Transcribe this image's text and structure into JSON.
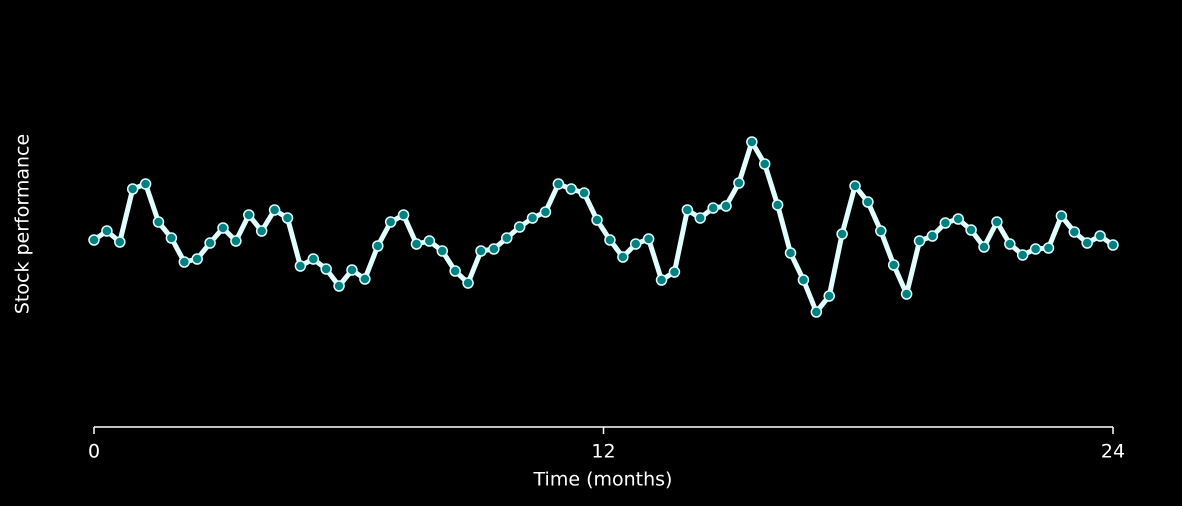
{
  "chart_data": {
    "type": "line",
    "x_label": "Time (months)",
    "y_label": "Stock performance",
    "xlim": [
      0,
      24
    ],
    "xticks": [
      0,
      12,
      24
    ],
    "ylim": [
      -4.7,
      4.3
    ],
    "color": "#e0ffff",
    "marker_color": "#008080",
    "x": [
      0,
      0.304,
      0.608,
      0.911,
      1.215,
      1.519,
      1.823,
      2.127,
      2.43,
      2.734,
      3.038,
      3.342,
      3.646,
      3.949,
      4.253,
      4.557,
      4.861,
      5.165,
      5.468,
      5.772,
      6.076,
      6.38,
      6.684,
      6.987,
      7.291,
      7.595,
      7.899,
      8.203,
      8.506,
      8.81,
      9.114,
      9.418,
      9.722,
      10.025,
      10.329,
      10.633,
      10.937,
      11.241,
      11.544,
      11.848,
      12.152,
      12.456,
      12.759,
      13.063,
      13.367,
      13.671,
      13.975,
      14.278,
      14.582,
      14.886,
      15.19,
      15.494,
      15.797,
      16.101,
      16.405,
      16.709,
      17.013,
      17.316,
      17.62,
      17.924,
      18.228,
      18.532,
      18.835,
      19.139,
      19.443,
      19.747,
      20.051,
      20.354,
      20.658,
      20.962,
      21.266,
      21.57,
      21.873,
      22.177,
      22.481,
      22.785,
      23.089,
      23.392,
      23.696,
      24
    ],
    "values": [
      0,
      0.225,
      -0.05,
      1.275,
      1.4,
      0.45,
      0.05,
      -0.55,
      -0.475,
      -0.075,
      0.3,
      -0.025,
      0.625,
      0.225,
      0.75,
      0.55,
      -0.65,
      -0.475,
      -0.725,
      -1.15,
      -0.75,
      -0.975,
      -0.15,
      0.45,
      0.625,
      -0.1,
      -0.025,
      -0.275,
      -0.775,
      -1.075,
      -0.275,
      -0.225,
      0.05,
      0.325,
      0.55,
      0.7,
      1.4,
      1.275,
      1.175,
      0.5,
      0,
      -0.425,
      -0.1,
      0.025,
      -1,
      -0.8,
      0.75,
      0.55,
      0.8,
      0.85,
      1.425,
      2.45,
      1.9,
      0.875,
      -0.325,
      -1,
      -1.8,
      -1.4,
      0.15,
      1.35,
      0.95,
      0.225,
      -0.625,
      -1.35,
      -0.025,
      0.1,
      0.425,
      0.525,
      0.25,
      -0.175,
      0.45,
      -0.1,
      -0.375,
      -0.225,
      -0.2,
      0.6,
      0.2,
      -0.075,
      0.1,
      -0.125
    ]
  }
}
